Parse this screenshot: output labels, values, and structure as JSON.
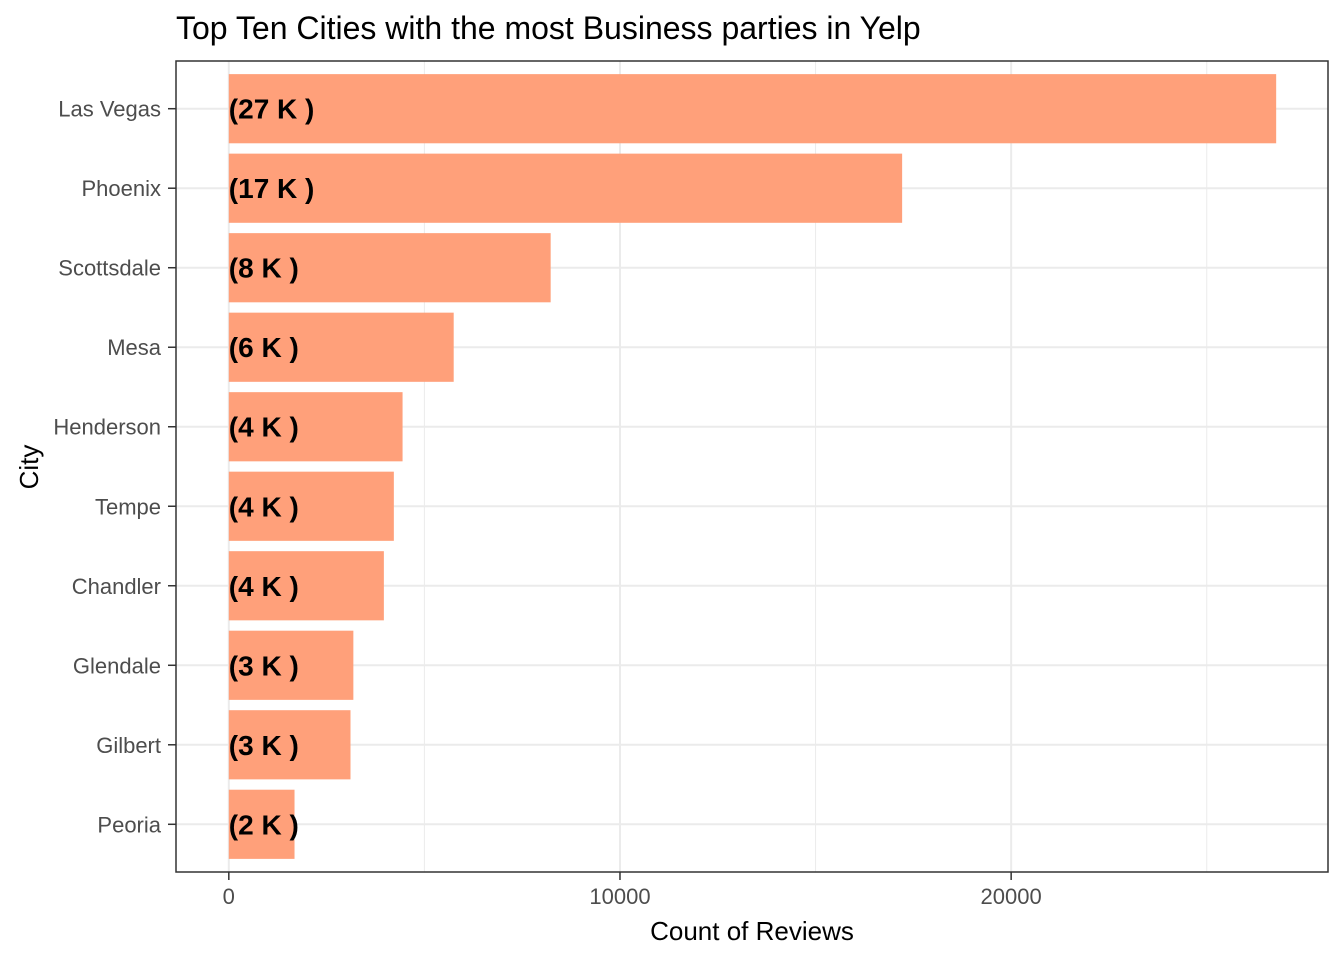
{
  "chart_data": {
    "type": "bar",
    "orientation": "horizontal",
    "title": "Top Ten Cities with the most Business parties in Yelp",
    "xlabel": "Count of Reviews",
    "ylabel": "City",
    "categories": [
      "Las Vegas",
      "Phoenix",
      "Scottsdale",
      "Mesa",
      "Henderson",
      "Tempe",
      "Chandler",
      "Glendale",
      "Gilbert",
      "Peoria"
    ],
    "values": [
      26775,
      17213,
      8228,
      5749,
      4442,
      4219,
      3964,
      3184,
      3111,
      1680
    ],
    "data_labels": [
      "(27 K )",
      "(17 K )",
      "(8 K )",
      "(6 K )",
      "(4 K )",
      "(4 K )",
      "(4 K )",
      "(3 K )",
      "(3 K )",
      "(2 K )"
    ],
    "xlim": [
      -1350,
      28100
    ],
    "xticks": [
      0,
      10000,
      20000
    ],
    "xtick_labels": [
      "0",
      "10000",
      "20000"
    ],
    "minor_xticks": [
      5000,
      15000,
      25000
    ],
    "grid": true,
    "bar_color": "#FFA07A",
    "grid_color": "#EBEBEB"
  }
}
